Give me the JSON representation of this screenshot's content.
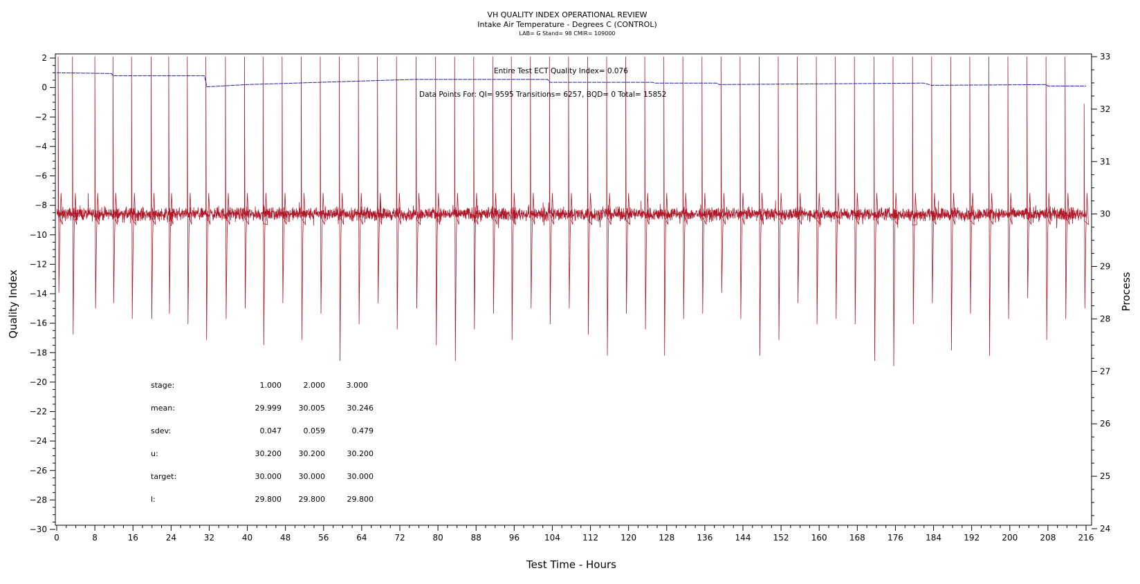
{
  "chart_data": {
    "type": "line",
    "title": "VH QUALITY INDEX OPERATIONAL REVIEW",
    "subtitle": "Intake Air Temperature - Degrees C (CONTROL)",
    "subtitle2": "LAB= G Stand= 98 CMIR= 109000",
    "xlabel": "Test Time - Hours",
    "ylabel": "Quality Index",
    "y2label": "Process",
    "xlim": [
      0,
      216
    ],
    "ylim": [
      -30.5,
      2.2
    ],
    "y2lim": [
      24,
      33
    ],
    "xticks": [
      0,
      8,
      16,
      24,
      32,
      40,
      48,
      56,
      64,
      72,
      80,
      88,
      96,
      104,
      112,
      120,
      128,
      136,
      144,
      152,
      160,
      168,
      176,
      184,
      192,
      200,
      208,
      216
    ],
    "yticks": [
      2,
      0,
      -2,
      -4,
      -6,
      -8,
      -10,
      -12,
      -14,
      -16,
      -18,
      -20,
      -22,
      -24,
      -26,
      -28,
      -30
    ],
    "y2ticks": [
      24,
      25,
      26,
      27,
      28,
      29,
      30,
      31,
      32,
      33
    ],
    "grid": false,
    "annotations": {
      "qi_text": "Entire Test ECT Quality Index=   0.076",
      "points_text": "Data Points For: QI=   9595 Transitions=   6257, BQD=     0 Total=   15852"
    },
    "stats": {
      "headers": [
        "stage:",
        "1.000",
        "2.000",
        "3.000"
      ],
      "rows": [
        {
          "label": "mean:",
          "values": [
            "29.999",
            "30.005",
            "30.246"
          ]
        },
        {
          "label": "sdev:",
          "values": [
            "0.047",
            "0.059",
            "0.479"
          ]
        },
        {
          "label": "u:",
          "values": [
            "30.200",
            "30.200",
            "30.200"
          ]
        },
        {
          "label": "target:",
          "values": [
            "30.000",
            "30.000",
            "30.000"
          ]
        },
        {
          "label": "l:",
          "values": [
            "29.800",
            "29.800",
            "29.800"
          ]
        }
      ]
    },
    "series": [
      {
        "role": "process",
        "color": "#b0182a",
        "axis": "right",
        "baseline": 30.0,
        "spike_times": [
          0.3,
          3.3,
          8.0,
          11.8,
          15.7,
          19.8,
          23.5,
          27.4,
          31.3,
          35.4,
          39.4,
          43.3,
          47.3,
          51.3,
          55.3,
          59.3,
          63.3,
          67.3,
          71.3,
          75.4,
          79.5,
          83.5,
          87.5,
          91.5,
          95.4,
          99.4,
          103.4,
          107.4,
          111.4,
          115.4,
          119.4,
          123.4,
          127.4,
          131.4,
          135.4,
          139.4,
          143.4,
          147.4,
          151.4,
          155.4,
          159.4,
          163.4,
          167.4,
          171.5,
          175.5,
          179.6,
          183.6,
          187.6,
          191.6,
          195.6,
          199.6,
          203.6,
          207.6,
          211.6,
          215.6
        ],
        "spike_highs": [
          33,
          33,
          33,
          33,
          33,
          33,
          33,
          33,
          33,
          33,
          33,
          33,
          33,
          33,
          33,
          33,
          33,
          33,
          33,
          33,
          33,
          33,
          33,
          33,
          33,
          33,
          33,
          33,
          33,
          33,
          33,
          33,
          33,
          33,
          33,
          33,
          33,
          33,
          33,
          33,
          33,
          33,
          33,
          33,
          33,
          33,
          33,
          33,
          33,
          33,
          33,
          33,
          33,
          33,
          32.1
        ],
        "spike_lows": [
          28.5,
          27.7,
          28.2,
          28.3,
          28.0,
          28.0,
          28.1,
          27.9,
          27.6,
          28.0,
          28.2,
          27.5,
          28.3,
          27.6,
          28.1,
          27.2,
          27.9,
          28.3,
          27.8,
          28.2,
          27.5,
          27.2,
          27.8,
          28.1,
          27.6,
          28.2,
          27.9,
          28.2,
          27.7,
          27.3,
          28.1,
          27.8,
          27.3,
          28.0,
          28.1,
          28.5,
          28.0,
          27.3,
          27.6,
          28.3,
          27.9,
          28.0,
          27.9,
          27.2,
          27.1,
          27.9,
          28.3,
          27.4,
          28.1,
          27.3,
          28.0,
          28.4,
          27.6,
          28.0,
          28.2
        ]
      },
      {
        "role": "quality-index",
        "color": "#1f1f9e",
        "axis": "left",
        "x": [
          0,
          11.5,
          11.8,
          31.0,
          31.5,
          40,
          60,
          75,
          103.0,
          103.5,
          125,
          125.5,
          138.5,
          139,
          182,
          183.6,
          207.6,
          208,
          216
        ],
        "y": [
          1.0,
          0.95,
          0.8,
          0.8,
          0.05,
          0.2,
          0.4,
          0.55,
          0.55,
          0.35,
          0.35,
          0.3,
          0.3,
          0.2,
          0.3,
          0.15,
          0.2,
          0.1,
          0.1
        ]
      }
    ]
  }
}
